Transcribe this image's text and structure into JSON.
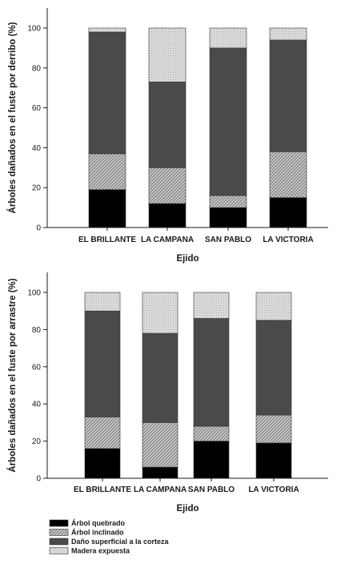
{
  "colors": {
    "arbol_quebrado": "#000000",
    "arbol_inclinado": "#b4b4b4",
    "dano_superficial": "#4a4a4a",
    "madera_expuesta": "#d4d4d4"
  },
  "legend": [
    {
      "key": "arbol_quebrado",
      "label": "Árbol quebrado"
    },
    {
      "key": "arbol_inclinado",
      "label": "Árbol inclinado"
    },
    {
      "key": "dano_superficial",
      "label": "Daño superficial a la corteza"
    },
    {
      "key": "madera_expuesta",
      "label": "Madera expuesta"
    }
  ],
  "chart_data": [
    {
      "type": "bar",
      "stacked": true,
      "categories": [
        "EL BRILLANTE",
        "LA CAMPANA",
        "SAN PABLO",
        "LA VICTORIA"
      ],
      "xlabel": "Ejido",
      "ylabel": "Árboles dañados en el fuste por derribo (%)",
      "ylim": [
        0,
        100
      ],
      "yticks": [
        0,
        20,
        40,
        60,
        80,
        100
      ],
      "series": [
        {
          "key": "arbol_quebrado",
          "name": "Árbol quebrado",
          "values": [
            19,
            12,
            10,
            15
          ]
        },
        {
          "key": "arbol_inclinado",
          "name": "Árbol inclinado",
          "values": [
            18,
            18,
            6,
            23
          ]
        },
        {
          "key": "dano_superficial",
          "name": "Daño superficial a la corteza",
          "values": [
            61,
            43,
            74,
            56
          ]
        },
        {
          "key": "madera_expuesta",
          "name": "Madera expuesta",
          "values": [
            2,
            27,
            10,
            6
          ]
        }
      ]
    },
    {
      "type": "bar",
      "stacked": true,
      "categories": [
        "EL BRILLANTE",
        "LA CAMPANA",
        "SAN PABLO",
        "LA VICTORIA"
      ],
      "xlabel": "Ejido",
      "ylabel": "Árboles dañados en el fuste por arrastre (%)",
      "ylim": [
        0,
        100
      ],
      "yticks": [
        0,
        20,
        40,
        60,
        80,
        100
      ],
      "series": [
        {
          "key": "arbol_quebrado",
          "name": "Árbol quebrado",
          "values": [
            16,
            6,
            20,
            19
          ]
        },
        {
          "key": "arbol_inclinado",
          "name": "Árbol inclinado",
          "values": [
            17,
            24,
            8,
            15
          ]
        },
        {
          "key": "dano_superficial",
          "name": "Daño superficial a la corteza",
          "values": [
            57,
            48,
            58,
            51
          ]
        },
        {
          "key": "madera_expuesta",
          "name": "Madera expuesta",
          "values": [
            10,
            22,
            14,
            15
          ]
        }
      ]
    }
  ]
}
